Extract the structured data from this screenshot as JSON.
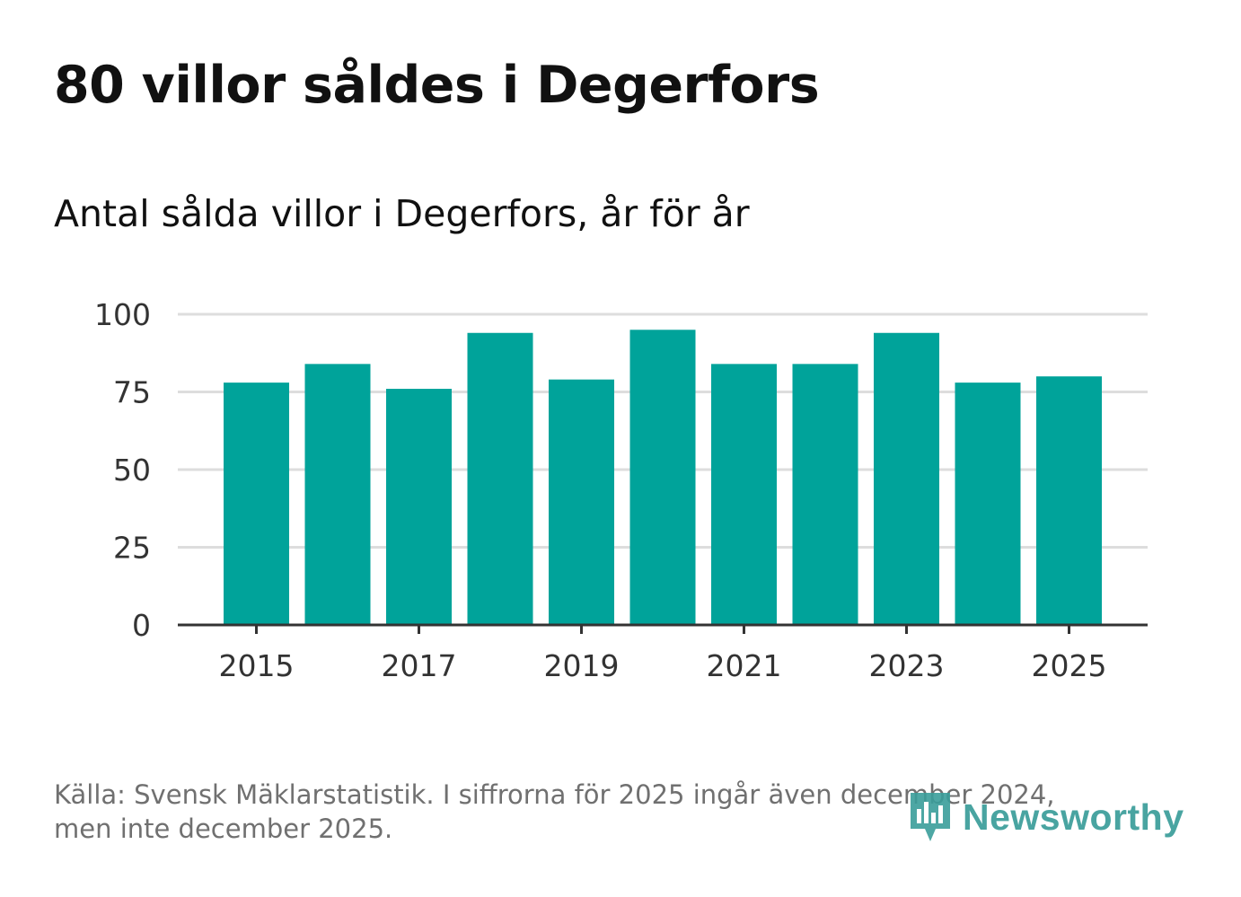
{
  "title": "80 villor såldes i Degerfors",
  "subtitle": "Antal sålda villor i Degerfors, år för år",
  "footer": {
    "line1": "Källa: Svensk Mäklarstatistik. I siffrorna för 2025 ingår även december 2024,",
    "line2": "men inte december 2025."
  },
  "logo": {
    "text": "Newsworthy",
    "icon": "bar-chart-speech-bubble-icon"
  },
  "colors": {
    "bar": "#00a39a",
    "grid": "#dddddd",
    "axis": "#333333",
    "logo": "#3a9d9a"
  },
  "chart_data": {
    "type": "bar",
    "categories": [
      "2015",
      "2016",
      "2017",
      "2018",
      "2019",
      "2020",
      "2021",
      "2022",
      "2023",
      "2024",
      "2025"
    ],
    "values": [
      78,
      84,
      76,
      94,
      79,
      95,
      84,
      84,
      94,
      78,
      80
    ],
    "x_tick_labels": [
      "2015",
      "2017",
      "2019",
      "2021",
      "2023",
      "2025"
    ],
    "y_ticks": [
      0,
      25,
      50,
      75,
      100
    ],
    "ylim": [
      0,
      100
    ],
    "grid": true,
    "title": "",
    "xlabel": "",
    "ylabel": ""
  }
}
